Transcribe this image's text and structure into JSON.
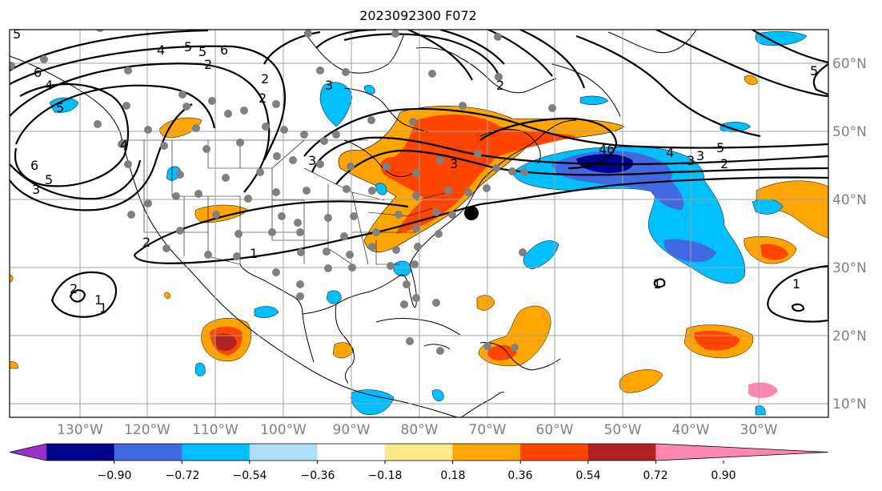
{
  "title": "2023092300 F072",
  "map": {
    "lon_labels": [
      "130°W",
      "120°W",
      "110°W",
      "100°W",
      "90°W",
      "80°W",
      "70°W",
      "60°W",
      "50°W",
      "40°W",
      "30°W"
    ],
    "lat_labels": [
      "60°N",
      "50°N",
      "40°N",
      "30°N",
      "20°N",
      "10°N"
    ],
    "contour_labels": [
      "5",
      "4",
      "5",
      "6",
      "2",
      "5",
      "4",
      "6",
      "5",
      "3",
      "2",
      "3",
      "1",
      "2",
      "1",
      "4",
      "3",
      "4",
      "3",
      "2",
      "6",
      "5",
      "3",
      "2",
      "5",
      "3",
      "4",
      "6",
      "5",
      "2",
      "1",
      "1",
      "1",
      "2"
    ],
    "marker": "storm-center-dot"
  },
  "colorbar": {
    "ticks": [
      "−0.90",
      "−0.72",
      "−0.54",
      "−0.36",
      "−0.18",
      "0.18",
      "0.36",
      "0.54",
      "0.72",
      "0.90"
    ],
    "colors": [
      "#9932cc",
      "#00008b",
      "#4169e1",
      "#00bfff",
      "#b0e0f8",
      "#ffffff",
      "#ffe98a",
      "#ffa500",
      "#ff4500",
      "#b22222",
      "#ff85b3"
    ]
  }
}
